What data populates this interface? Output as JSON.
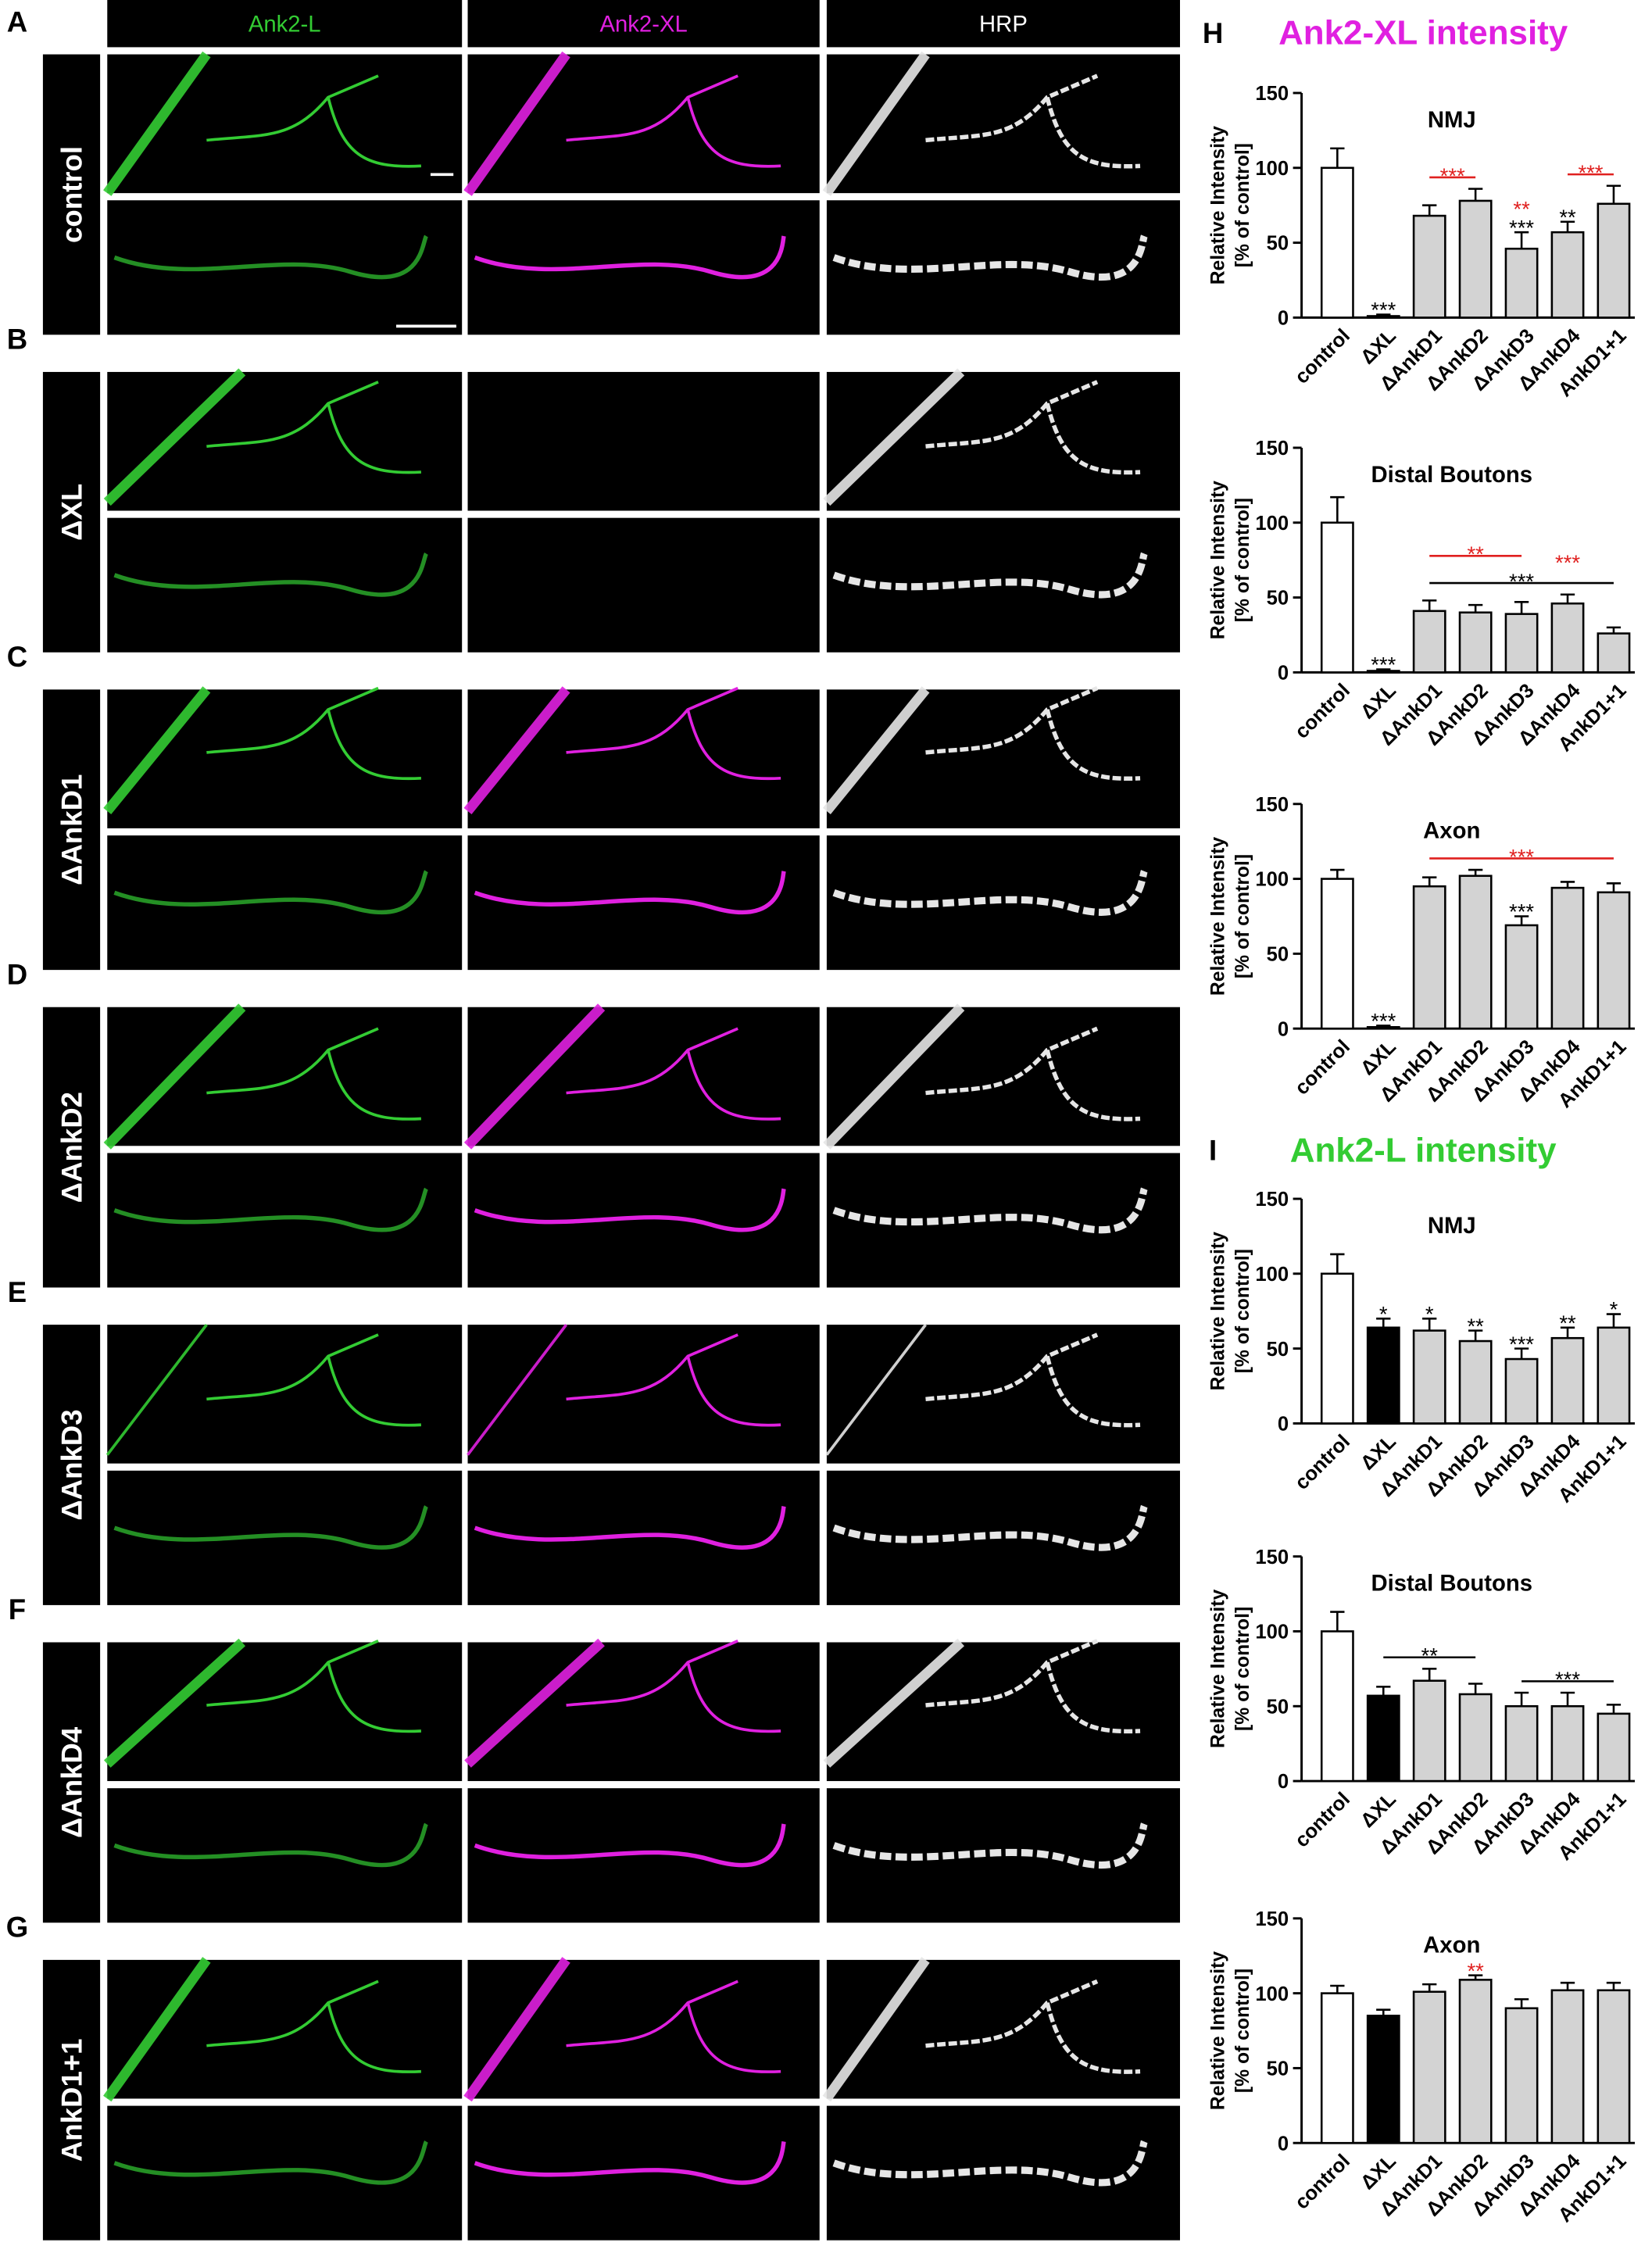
{
  "panels": {
    "columns": [
      {
        "label": "Ank2-L",
        "color": "#33cc33"
      },
      {
        "label": "Ank2-XL",
        "color": "#e020e0"
      },
      {
        "label": "HRP",
        "color": "#ffffff"
      }
    ],
    "rows": [
      {
        "letter": "A",
        "label": "control"
      },
      {
        "letter": "B",
        "label": "ΔXL"
      },
      {
        "letter": "C",
        "label": "ΔAnkD1"
      },
      {
        "letter": "D",
        "label": "ΔAnkD2"
      },
      {
        "letter": "E",
        "label": "ΔAnkD3"
      },
      {
        "letter": "F",
        "label": "ΔAnkD4"
      },
      {
        "letter": "G",
        "label": "AnkD1+1"
      }
    ]
  },
  "sections": [
    {
      "letter": "H",
      "title": "Ank2-XL intensity",
      "color": "#e020e0"
    },
    {
      "letter": "I",
      "title": "Ank2-L intensity",
      "color": "#33cc33"
    }
  ],
  "chart_data": [
    {
      "type": "bar",
      "title": "NMJ",
      "ylabel": [
        "Relative Intensity",
        "[% of control]"
      ],
      "categories": [
        "control",
        "ΔXL",
        "ΔAnkD1",
        "ΔAnkD2",
        "ΔAnkD3",
        "ΔAnkD4",
        "AnkD1+1"
      ],
      "values": [
        100,
        1,
        68,
        78,
        46,
        57,
        76
      ],
      "errors": [
        13,
        1,
        7,
        8,
        11,
        7,
        12
      ],
      "colors": [
        "#ffffff",
        "#ffffff",
        "#d3d3d3",
        "#d3d3d3",
        "#d3d3d3",
        "#d3d3d3",
        "#d3d3d3"
      ],
      "ylim": [
        0,
        150
      ],
      "yticks": [
        0,
        50,
        100,
        150
      ],
      "annotations": [
        {
          "text": "***",
          "color": "#000000",
          "bars": [
            1
          ]
        },
        {
          "text": "***",
          "color": "#e0201f",
          "bars": [
            2,
            3
          ]
        },
        {
          "text": "***",
          "color": "#000000",
          "bars": [
            4
          ]
        },
        {
          "text": "**",
          "color": "#e0201f",
          "bars": [
            4
          ]
        },
        {
          "text": "**",
          "color": "#000000",
          "bars": [
            5
          ]
        },
        {
          "text": "***",
          "color": "#e0201f",
          "bars": [
            5,
            6
          ]
        }
      ]
    },
    {
      "type": "bar",
      "title": "Distal Boutons",
      "ylabel": [
        "Relative Intensity",
        "[% of control]"
      ],
      "categories": [
        "control",
        "ΔXL",
        "ΔAnkD1",
        "ΔAnkD2",
        "ΔAnkD3",
        "ΔAnkD4",
        "AnkD1+1"
      ],
      "values": [
        100,
        1,
        41,
        40,
        39,
        46,
        26
      ],
      "errors": [
        17,
        1,
        7,
        5,
        8,
        6,
        4
      ],
      "colors": [
        "#ffffff",
        "#ffffff",
        "#d3d3d3",
        "#d3d3d3",
        "#d3d3d3",
        "#d3d3d3",
        "#d3d3d3"
      ],
      "ylim": [
        0,
        150
      ],
      "yticks": [
        0,
        50,
        100,
        150
      ],
      "annotations": [
        {
          "text": "***",
          "color": "#000000",
          "bars": [
            1
          ]
        },
        {
          "text": "***",
          "color": "#000000",
          "bars": [
            2,
            6
          ]
        },
        {
          "text": "**",
          "color": "#e0201f",
          "bars": [
            2,
            4
          ]
        },
        {
          "text": "***",
          "color": "#e0201f",
          "bars": [
            5
          ]
        }
      ]
    },
    {
      "type": "bar",
      "title": "Axon",
      "ylabel": [
        "Relative Intensity",
        "[% of control]"
      ],
      "categories": [
        "control",
        "ΔXL",
        "ΔAnkD1",
        "ΔAnkD2",
        "ΔAnkD3",
        "ΔAnkD4",
        "AnkD1+1"
      ],
      "values": [
        100,
        1,
        95,
        102,
        69,
        94,
        91
      ],
      "errors": [
        6,
        1,
        6,
        4,
        6,
        4,
        6
      ],
      "colors": [
        "#ffffff",
        "#ffffff",
        "#d3d3d3",
        "#d3d3d3",
        "#d3d3d3",
        "#d3d3d3",
        "#d3d3d3"
      ],
      "ylim": [
        0,
        150
      ],
      "yticks": [
        0,
        50,
        100,
        150
      ],
      "annotations": [
        {
          "text": "***",
          "color": "#000000",
          "bars": [
            1
          ]
        },
        {
          "text": "***",
          "color": "#000000",
          "bars": [
            4
          ]
        },
        {
          "text": "***",
          "color": "#e0201f",
          "bars": [
            2,
            6
          ]
        }
      ]
    },
    {
      "type": "bar",
      "title": "NMJ",
      "ylabel": [
        "Relative Intensity",
        "[% of control]"
      ],
      "categories": [
        "control",
        "ΔXL",
        "ΔAnkD1",
        "ΔAnkD2",
        "ΔAnkD3",
        "ΔAnkD4",
        "AnkD1+1"
      ],
      "values": [
        100,
        64,
        62,
        55,
        43,
        57,
        64
      ],
      "errors": [
        13,
        6,
        8,
        7,
        7,
        7,
        9
      ],
      "colors": [
        "#ffffff",
        "#000000",
        "#d3d3d3",
        "#d3d3d3",
        "#d3d3d3",
        "#d3d3d3",
        "#d3d3d3"
      ],
      "ylim": [
        0,
        150
      ],
      "yticks": [
        0,
        50,
        100,
        150
      ],
      "annotations": [
        {
          "text": "*",
          "color": "#000000",
          "bars": [
            1
          ]
        },
        {
          "text": "*",
          "color": "#000000",
          "bars": [
            2
          ]
        },
        {
          "text": "**",
          "color": "#000000",
          "bars": [
            3
          ]
        },
        {
          "text": "***",
          "color": "#000000",
          "bars": [
            4
          ]
        },
        {
          "text": "**",
          "color": "#000000",
          "bars": [
            5
          ]
        },
        {
          "text": "*",
          "color": "#000000",
          "bars": [
            6
          ]
        }
      ]
    },
    {
      "type": "bar",
      "title": "Distal Boutons",
      "ylabel": [
        "Relative Intensity",
        "[% of control]"
      ],
      "categories": [
        "control",
        "ΔXL",
        "ΔAnkD1",
        "ΔAnkD2",
        "ΔAnkD3",
        "ΔAnkD4",
        "AnkD1+1"
      ],
      "values": [
        100,
        57,
        67,
        58,
        50,
        50,
        45
      ],
      "errors": [
        13,
        6,
        8,
        7,
        9,
        9,
        6
      ],
      "colors": [
        "#ffffff",
        "#000000",
        "#d3d3d3",
        "#d3d3d3",
        "#d3d3d3",
        "#d3d3d3",
        "#d3d3d3"
      ],
      "ylim": [
        0,
        150
      ],
      "yticks": [
        0,
        50,
        100,
        150
      ],
      "annotations": [
        {
          "text": "**",
          "color": "#000000",
          "bars": [
            1,
            3
          ]
        },
        {
          "text": "***",
          "color": "#000000",
          "bars": [
            4,
            6
          ]
        }
      ]
    },
    {
      "type": "bar",
      "title": "Axon",
      "ylabel": [
        "Relative Intensity",
        "[% of control]"
      ],
      "categories": [
        "control",
        "ΔXL",
        "ΔAnkD1",
        "ΔAnkD2",
        "ΔAnkD3",
        "ΔAnkD4",
        "AnkD1+1"
      ],
      "values": [
        100,
        85,
        101,
        109,
        90,
        102,
        102
      ],
      "errors": [
        5,
        4,
        5,
        3,
        6,
        5,
        5
      ],
      "colors": [
        "#ffffff",
        "#000000",
        "#d3d3d3",
        "#d3d3d3",
        "#d3d3d3",
        "#d3d3d3",
        "#d3d3d3"
      ],
      "ylim": [
        0,
        150
      ],
      "yticks": [
        0,
        50,
        100,
        150
      ],
      "annotations": [
        {
          "text": "**",
          "color": "#e0201f",
          "bars": [
            3
          ]
        }
      ]
    }
  ]
}
